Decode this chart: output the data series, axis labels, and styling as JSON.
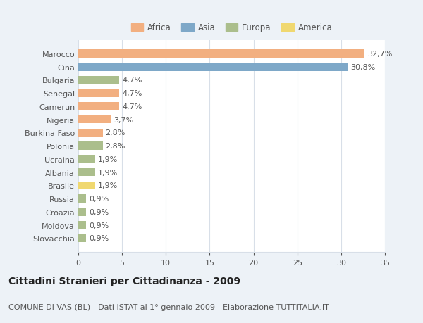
{
  "countries": [
    "Marocco",
    "Cina",
    "Bulgaria",
    "Senegal",
    "Camerun",
    "Nigeria",
    "Burkina Faso",
    "Polonia",
    "Ucraina",
    "Albania",
    "Brasile",
    "Russia",
    "Croazia",
    "Moldova",
    "Slovacchia"
  ],
  "values": [
    32.7,
    30.8,
    4.7,
    4.7,
    4.7,
    3.7,
    2.8,
    2.8,
    1.9,
    1.9,
    1.9,
    0.9,
    0.9,
    0.9,
    0.9
  ],
  "labels": [
    "32,7%",
    "30,8%",
    "4,7%",
    "4,7%",
    "4,7%",
    "3,7%",
    "2,8%",
    "2,8%",
    "1,9%",
    "1,9%",
    "1,9%",
    "0,9%",
    "0,9%",
    "0,9%",
    "0,9%"
  ],
  "continents": [
    "Africa",
    "Asia",
    "Europa",
    "Africa",
    "Africa",
    "Africa",
    "Africa",
    "Europa",
    "Europa",
    "Europa",
    "America",
    "Europa",
    "Europa",
    "Europa",
    "Europa"
  ],
  "colors": {
    "Africa": "#F2AF80",
    "Asia": "#7EA8C8",
    "Europa": "#ABBE8C",
    "America": "#F0D870"
  },
  "legend_order": [
    "Africa",
    "Asia",
    "Europa",
    "America"
  ],
  "title": "Cittadini Stranieri per Cittadinanza - 2009",
  "subtitle": "COMUNE DI VAS (BL) - Dati ISTAT al 1° gennaio 2009 - Elaborazione TUTTITALIA.IT",
  "xlim": [
    0,
    35
  ],
  "xticks": [
    0,
    5,
    10,
    15,
    20,
    25,
    30,
    35
  ],
  "background_color": "#edf2f7",
  "plot_background": "#ffffff",
  "grid_color": "#d8dfe8",
  "title_fontsize": 10,
  "subtitle_fontsize": 8,
  "bar_label_fontsize": 8,
  "tick_fontsize": 8,
  "legend_fontsize": 8.5
}
